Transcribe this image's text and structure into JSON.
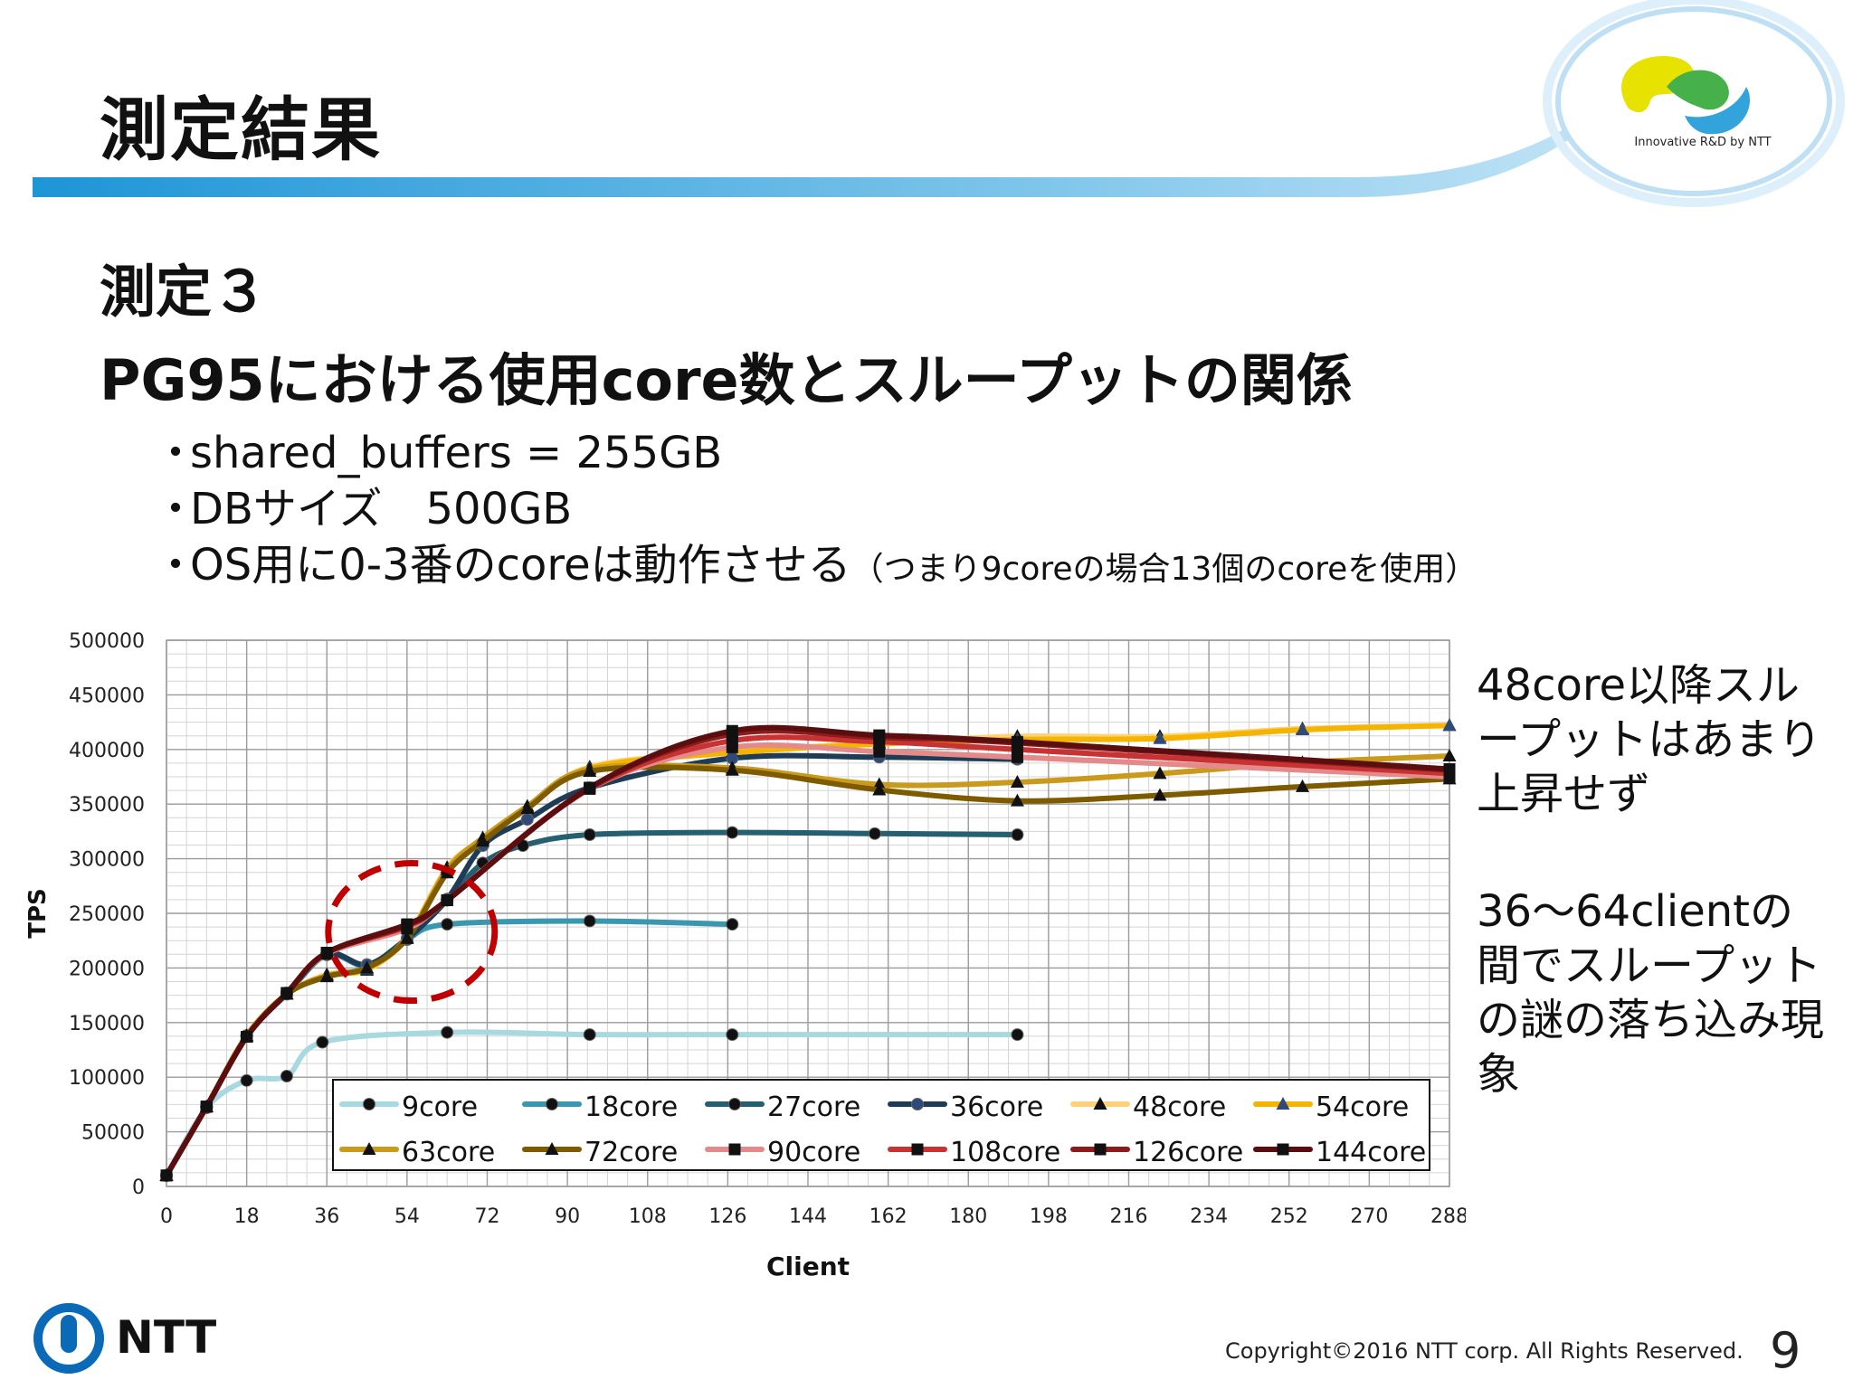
{
  "header": {
    "title": "測定結果",
    "logo_caption": "Innovative R&D by NTT"
  },
  "headings": {
    "line1": "測定３",
    "line2": "PG95における使用core数とスループットの関係"
  },
  "bullets": [
    {
      "bullet": "・",
      "text": "shared_buffers = 255GB",
      "note": ""
    },
    {
      "bullet": "・",
      "text": "DBサイズ　500GB",
      "note": ""
    },
    {
      "bullet": "・",
      "text": "OS用に0-3番のcoreは動作させる",
      "note": "（つまり9coreの場合13個のcoreを使用）"
    }
  ],
  "side_notes": {
    "note1": [
      "48core以降スル",
      "ープットはあまり",
      "上昇せず"
    ],
    "note2": [
      "36～64clientの",
      "間でスループット",
      "の謎の落ち込み現",
      "象"
    ]
  },
  "footer": {
    "logo_text": "NTT",
    "copyright": "Copyright©2016  NTT corp. All Rights Reserved.",
    "page_number": "9"
  },
  "colors": {
    "header_band": "#2a9ed8",
    "callout_circle": "#c00000"
  },
  "chart_data": {
    "type": "line",
    "title": "",
    "xlabel": "Client",
    "ylabel": "TPS",
    "xlim": [
      0,
      288
    ],
    "ylim": [
      0,
      500000
    ],
    "x_ticks": [
      0,
      18,
      36,
      54,
      72,
      90,
      108,
      126,
      144,
      162,
      180,
      198,
      216,
      234,
      252,
      270,
      288
    ],
    "y_ticks": [
      0,
      50000,
      100000,
      150000,
      200000,
      250000,
      300000,
      350000,
      400000,
      450000,
      500000
    ],
    "grid": true,
    "legend_position": "bottom-inside",
    "series": [
      {
        "name": "9core",
        "color": "#a8d8e0",
        "marker": "circle",
        "points": [
          [
            0,
            10000
          ],
          [
            9,
            72000
          ],
          [
            18,
            97000
          ],
          [
            27,
            101000
          ],
          [
            35,
            132000
          ],
          [
            63,
            141000
          ],
          [
            95,
            139000
          ],
          [
            127,
            139000
          ],
          [
            191,
            139000
          ]
        ]
      },
      {
        "name": "18core",
        "color": "#3a97b0",
        "marker": "circle",
        "points": [
          [
            0,
            10000
          ],
          [
            9,
            73000
          ],
          [
            18,
            138000
          ],
          [
            27,
            176000
          ],
          [
            36,
            212000
          ],
          [
            45,
            202000
          ],
          [
            54,
            226000
          ],
          [
            63,
            240000
          ],
          [
            95,
            243000
          ],
          [
            127,
            240000
          ]
        ]
      },
      {
        "name": "27core",
        "color": "#245f72",
        "marker": "circle",
        "points": [
          [
            0,
            10000
          ],
          [
            9,
            73000
          ],
          [
            18,
            138000
          ],
          [
            27,
            177000
          ],
          [
            36,
            213000
          ],
          [
            45,
            203000
          ],
          [
            54,
            226000
          ],
          [
            63,
            262000
          ],
          [
            71,
            296000
          ],
          [
            80,
            312000
          ],
          [
            95,
            322000
          ],
          [
            127,
            324000
          ],
          [
            159,
            323000
          ],
          [
            191,
            322000
          ]
        ]
      },
      {
        "name": "36core",
        "color": "#1e3c55",
        "marker": "circle",
        "points": [
          [
            0,
            10000
          ],
          [
            9,
            73000
          ],
          [
            18,
            138000
          ],
          [
            27,
            177000
          ],
          [
            36,
            213000
          ],
          [
            45,
            203000
          ],
          [
            54,
            227000
          ],
          [
            63,
            263000
          ],
          [
            71,
            312000
          ],
          [
            81,
            336000
          ],
          [
            95,
            365000
          ],
          [
            127,
            392000
          ],
          [
            160,
            393000
          ],
          [
            191,
            391000
          ]
        ]
      },
      {
        "name": "48core",
        "color": "#ffd27a",
        "marker": "triangle",
        "points": [
          [
            0,
            10000
          ],
          [
            9,
            73000
          ],
          [
            18,
            138000
          ],
          [
            27,
            176000
          ],
          [
            36,
            194000
          ],
          [
            45,
            198000
          ],
          [
            54,
            228000
          ],
          [
            63,
            292000
          ],
          [
            71,
            318000
          ],
          [
            81,
            347000
          ],
          [
            95,
            384000
          ],
          [
            127,
            398000
          ],
          [
            160,
            406000
          ],
          [
            191,
            412000
          ],
          [
            223,
            412000
          ],
          [
            255,
            419000
          ],
          [
            288,
            422000
          ]
        ]
      },
      {
        "name": "54core",
        "color": "#f4b400",
        "marker": "triangle",
        "points": [
          [
            0,
            10000
          ],
          [
            9,
            73000
          ],
          [
            18,
            138000
          ],
          [
            27,
            176000
          ],
          [
            36,
            193000
          ],
          [
            45,
            199000
          ],
          [
            54,
            228000
          ],
          [
            63,
            290000
          ],
          [
            71,
            319000
          ],
          [
            81,
            348000
          ],
          [
            95,
            383000
          ],
          [
            127,
            397000
          ],
          [
            160,
            405000
          ],
          [
            191,
            409000
          ],
          [
            223,
            410000
          ],
          [
            255,
            418000
          ],
          [
            288,
            422000
          ]
        ]
      },
      {
        "name": "63core",
        "color": "#c99a1c",
        "marker": "triangle",
        "points": [
          [
            0,
            10000
          ],
          [
            9,
            73000
          ],
          [
            18,
            138000
          ],
          [
            27,
            176000
          ],
          [
            36,
            193000
          ],
          [
            45,
            200000
          ],
          [
            54,
            227000
          ],
          [
            63,
            290000
          ],
          [
            71,
            319000
          ],
          [
            81,
            348000
          ],
          [
            95,
            382000
          ],
          [
            127,
            383000
          ],
          [
            160,
            368000
          ],
          [
            191,
            370000
          ],
          [
            223,
            378000
          ],
          [
            255,
            388000
          ],
          [
            288,
            394000
          ]
        ]
      },
      {
        "name": "72core",
        "color": "#7f5b00",
        "marker": "triangle",
        "points": [
          [
            0,
            10000
          ],
          [
            9,
            73000
          ],
          [
            18,
            137000
          ],
          [
            27,
            176000
          ],
          [
            36,
            192000
          ],
          [
            45,
            200000
          ],
          [
            54,
            227000
          ],
          [
            63,
            287000
          ],
          [
            71,
            316000
          ],
          [
            81,
            346000
          ],
          [
            95,
            380000
          ],
          [
            127,
            381000
          ],
          [
            160,
            363000
          ],
          [
            191,
            353000
          ],
          [
            223,
            358000
          ],
          [
            255,
            366000
          ],
          [
            288,
            373000
          ]
        ]
      },
      {
        "name": "90core",
        "color": "#e48a8a",
        "marker": "square",
        "points": [
          [
            0,
            10000
          ],
          [
            9,
            73000
          ],
          [
            18,
            137000
          ],
          [
            27,
            177000
          ],
          [
            36,
            213000
          ],
          [
            54,
            236000
          ],
          [
            63,
            262000
          ],
          [
            95,
            364000
          ],
          [
            127,
            402000
          ],
          [
            160,
            398000
          ],
          [
            191,
            393000
          ],
          [
            288,
            375000
          ]
        ]
      },
      {
        "name": "108core",
        "color": "#c83232",
        "marker": "square",
        "points": [
          [
            0,
            10000
          ],
          [
            9,
            73000
          ],
          [
            18,
            137000
          ],
          [
            27,
            177000
          ],
          [
            36,
            214000
          ],
          [
            54,
            238000
          ],
          [
            63,
            262000
          ],
          [
            95,
            364000
          ],
          [
            127,
            408000
          ],
          [
            160,
            407000
          ],
          [
            191,
            400000
          ],
          [
            288,
            378000
          ]
        ]
      },
      {
        "name": "126core",
        "color": "#8e1b1b",
        "marker": "square",
        "points": [
          [
            0,
            10000
          ],
          [
            9,
            73000
          ],
          [
            18,
            137000
          ],
          [
            27,
            177000
          ],
          [
            36,
            214000
          ],
          [
            54,
            239000
          ],
          [
            63,
            262000
          ],
          [
            95,
            365000
          ],
          [
            127,
            414000
          ],
          [
            160,
            411000
          ],
          [
            191,
            406000
          ],
          [
            288,
            381000
          ]
        ]
      },
      {
        "name": "144core",
        "color": "#5a0e10",
        "marker": "square",
        "points": [
          [
            0,
            10000
          ],
          [
            9,
            73000
          ],
          [
            18,
            137000
          ],
          [
            27,
            177000
          ],
          [
            36,
            214000
          ],
          [
            54,
            240000
          ],
          [
            63,
            262000
          ],
          [
            95,
            365000
          ],
          [
            127,
            417000
          ],
          [
            160,
            413000
          ],
          [
            191,
            407000
          ],
          [
            288,
            382000
          ]
        ]
      }
    ]
  }
}
